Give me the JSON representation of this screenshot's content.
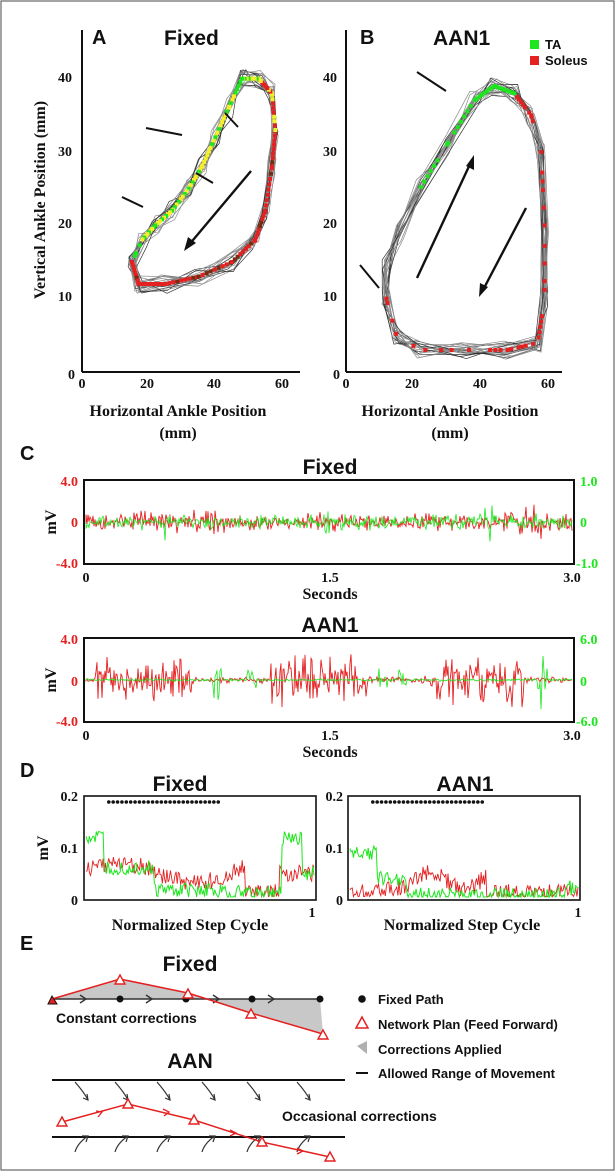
{
  "panels": [
    "A",
    "B",
    "C",
    "D",
    "E"
  ],
  "colors": {
    "ta": "#1ee61e",
    "soleus": "#e52020",
    "yellow": "#f3f02a",
    "trace": "#555555"
  },
  "chart_data": [
    {
      "type": "line",
      "panel": "A",
      "title": "Fixed",
      "xlabel": "Horizontal Ankle Position (mm)",
      "ylabel": "Vertical Ankle Position (mm)",
      "xlim": [
        0,
        60
      ],
      "ylim": [
        0,
        45
      ],
      "xticks": [
        "0",
        "20",
        "40",
        "60"
      ],
      "yticks": [
        "10",
        "20",
        "30",
        "40"
      ],
      "loop": [
        [
          15,
          15
        ],
        [
          17,
          12
        ],
        [
          25,
          12
        ],
        [
          35,
          13
        ],
        [
          45,
          15
        ],
        [
          52,
          18
        ],
        [
          55,
          22
        ],
        [
          57,
          28
        ],
        [
          58,
          33
        ],
        [
          57,
          38
        ],
        [
          53,
          40
        ],
        [
          48,
          40
        ],
        [
          44,
          36
        ],
        [
          40,
          32
        ],
        [
          36,
          28
        ],
        [
          32,
          25
        ],
        [
          27,
          22
        ],
        [
          22,
          20
        ],
        [
          18,
          18
        ],
        [
          15,
          15
        ]
      ]
    },
    {
      "type": "line",
      "panel": "B",
      "title": "AAN1",
      "xlabel": "Horizontal Ankle Position (mm)",
      "ylabel": "",
      "xlim": [
        0,
        60
      ],
      "ylim": [
        0,
        45
      ],
      "xticks": [
        "0",
        "20",
        "40",
        "60"
      ],
      "yticks": [
        "10",
        "20",
        "30",
        "40"
      ],
      "legend": [
        "TA",
        "Soleus"
      ],
      "loop": [
        [
          12,
          10
        ],
        [
          15,
          5
        ],
        [
          22,
          3
        ],
        [
          35,
          3
        ],
        [
          48,
          3
        ],
        [
          57,
          4
        ],
        [
          59,
          10
        ],
        [
          59,
          20
        ],
        [
          58,
          30
        ],
        [
          55,
          35
        ],
        [
          50,
          38
        ],
        [
          44,
          39
        ],
        [
          38,
          37
        ],
        [
          30,
          31
        ],
        [
          22,
          25
        ],
        [
          16,
          19
        ],
        [
          12,
          14
        ],
        [
          12,
          10
        ]
      ]
    },
    {
      "type": "line",
      "panel": "C",
      "title": "Fixed",
      "xlabel": "Seconds",
      "ylabel": "mV",
      "xlim": [
        0,
        3.0
      ],
      "xticks": [
        "0",
        "1.5",
        "3.0"
      ],
      "yticks_left": [
        "4.0",
        "0",
        "-4.0"
      ],
      "yticks_right": [
        "1.0",
        "0",
        "-1.0"
      ],
      "series": [
        {
          "name": "Soleus"
        },
        {
          "name": "TA"
        }
      ]
    },
    {
      "type": "line",
      "panel": "C",
      "title": "AAN1",
      "xlabel": "Seconds",
      "ylabel": "mV",
      "xlim": [
        0,
        3.0
      ],
      "xticks": [
        "0",
        "1.5",
        "3.0"
      ],
      "yticks_left": [
        "4.0",
        "0",
        "-4.0"
      ],
      "yticks_right": [
        "6.0",
        "0",
        "-6.0"
      ],
      "series": [
        {
          "name": "Soleus"
        },
        {
          "name": "TA"
        }
      ]
    },
    {
      "type": "line",
      "panel": "D",
      "title": "Fixed",
      "xlabel": "Normalized Step Cycle",
      "ylabel": "mV",
      "ylim": [
        0,
        0.2
      ],
      "xticks": [
        "0",
        "1"
      ],
      "yticks": [
        "0.2",
        "0.1",
        "0"
      ]
    },
    {
      "type": "line",
      "panel": "D",
      "title": "AAN1",
      "xlabel": "Normalized Step Cycle",
      "ylabel": "",
      "ylim": [
        0,
        0.2
      ],
      "xticks": [
        "0",
        "1"
      ],
      "yticks": [
        "0.2",
        "0.1",
        "0"
      ]
    }
  ],
  "diagram": {
    "fixed_title": "Fixed",
    "aan_title": "AAN",
    "constant_label": "Constant corrections",
    "occasional_label": "Occasional corrections",
    "legend": [
      "Fixed Path",
      "Network Plan (Feed Forward)",
      "Corrections Applied",
      "Allowed Range of Movement"
    ]
  }
}
